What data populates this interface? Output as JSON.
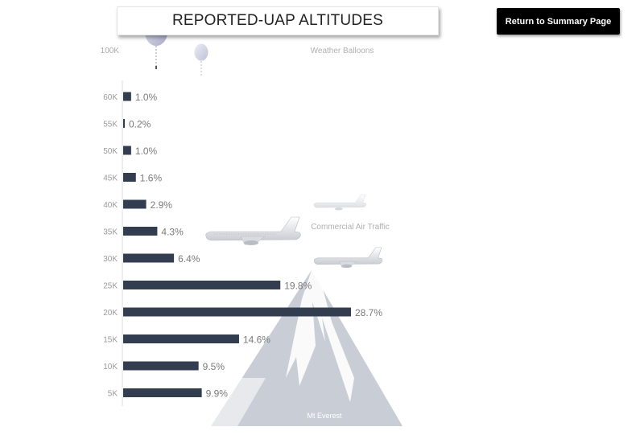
{
  "title": "REPORTED-UAP ALTITUDES",
  "return_button": "Return to Summary Page",
  "annotations": {
    "balloons": "Weather Balloons",
    "air_traffic": "Commercial Air Traffic",
    "everest": "Mt Everest",
    "top_tick": "100K"
  },
  "colors": {
    "bar": "#323e50",
    "mountain": "#c9ced6",
    "mountain_snow": "#ffffff",
    "label": "#8a8a8a",
    "balloon": "#c2c4dc"
  },
  "icons": [
    "weather-balloon-icon",
    "airplane-icon",
    "mountain-icon"
  ],
  "chart_data": {
    "type": "bar",
    "orientation": "horizontal",
    "title": "REPORTED-UAP ALTITUDES",
    "categories": [
      "60K",
      "55K",
      "50K",
      "45K",
      "40K",
      "35K",
      "30K",
      "25K",
      "20K",
      "15K",
      "10K",
      "5K"
    ],
    "values": [
      1.0,
      0.2,
      1.0,
      1.6,
      2.9,
      4.3,
      6.4,
      19.8,
      28.7,
      14.6,
      9.5,
      9.9
    ],
    "value_labels": [
      "1.0%",
      "0.2%",
      "1.0%",
      "1.6%",
      "2.9%",
      "4.3%",
      "6.4%",
      "19.8%",
      "28.7%",
      "14.6%",
      "9.5%",
      "9.9%"
    ],
    "unit": "%",
    "xlabel": "",
    "ylabel": "",
    "grid": false,
    "legend": "none"
  }
}
